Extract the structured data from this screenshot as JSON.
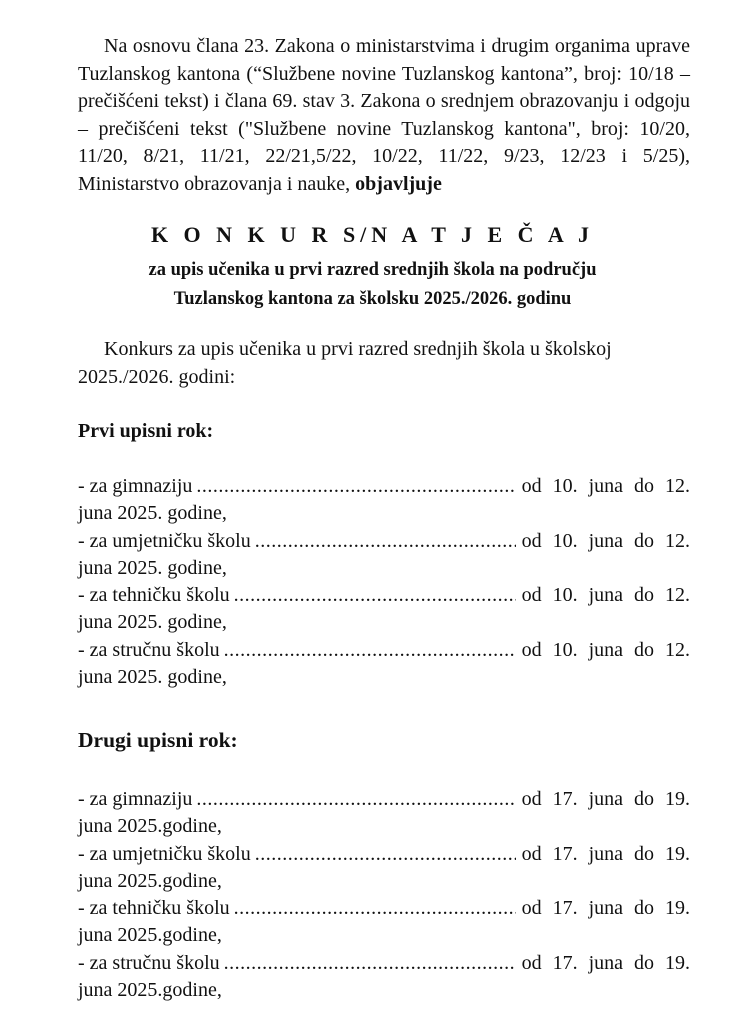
{
  "intro": {
    "text": "Na osnovu člana 23. Zakona o ministarstvima i drugim organima uprave Tuzlanskog kantona (“Službene novine Tuzlanskog kantona”, broj: 10/18 – prečišćeni tekst) i člana 69. stav 3. Zakona o srednjem obrazovanju i odgoju – prečišćeni tekst (\"Službene novine Tuzlanskog kantona\", broj: 10/20, 11/20, 8/21, 11/21, 22/21,5/22, 10/22, 11/22, 9/23, 12/23 i 5/25), Ministarstvo obrazovanja i nauke,",
    "bold_end": "objavljuje"
  },
  "title": "K O N K U R S/N A T J E Č A J",
  "subtitle_1": "za upis učenika u prvi razred srednjih škola na području",
  "subtitle_2": "Tuzlanskog kantona za školsku 2025./2026. godinu",
  "lead_paragraph": "Konkurs za upis učenika u prvi razred srednjih škola u školskoj 2025./2026. godini:",
  "rounds": [
    {
      "heading": "Prvi upisni rok:",
      "entries": [
        {
          "label": "- za gimnaziju",
          "date": "od 10. juna do 12.",
          "cont": "juna 2025. godine,"
        },
        {
          "label": "- za umjetničku  školu",
          "date": "od 10. juna do 12.",
          "cont": "juna 2025. godine,"
        },
        {
          "label": "- za tehničku školu",
          "date": "od 10. juna do 12.",
          "cont": "juna 2025. godine,"
        },
        {
          "label": "- za stručnu školu",
          "date": "od 10. juna do 12.",
          "cont": "juna 2025. godine,"
        }
      ]
    },
    {
      "heading": "Drugi upisni rok:",
      "entries": [
        {
          "label": "- za gimnaziju",
          "date": "od 17. juna do 19.",
          "cont": "juna 2025.godine,"
        },
        {
          "label": "- za umjetničku školu",
          "date": "od 17. juna do 19.",
          "cont": "juna 2025.godine,"
        },
        {
          "label": "- za tehničku školu",
          "date": "od 17. juna do 19.",
          "cont": "juna 2025.godine,"
        },
        {
          "label": "- za stručnu školu",
          "date": "od 17. juna do 19.",
          "cont": "juna 2025.godine,"
        }
      ]
    }
  ]
}
